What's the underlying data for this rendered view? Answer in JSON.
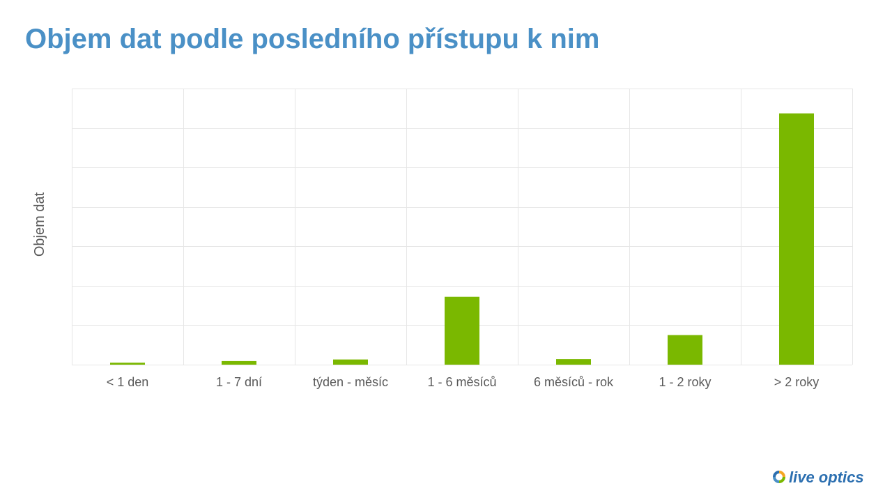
{
  "slide": {
    "title": "Objem dat podle posledního přístupu k nim",
    "logo_text": "live optics"
  },
  "colors": {
    "title": "#4a90c6",
    "bar": "#7ab800",
    "grid": "#e6e6e6",
    "text": "#595959"
  },
  "chart_data": {
    "type": "bar",
    "title": "",
    "xlabel": "",
    "ylabel": "Objem dat",
    "categories": [
      "< 1 den",
      "1 - 7 dní",
      "týden - měsíc",
      "1 - 6 měsíců",
      "6 měsíců - rok",
      "1 - 2 roky",
      "> 2 roky"
    ],
    "values": [
      0.5,
      0.9,
      1.3,
      17.2,
      1.4,
      7.5,
      63.7
    ],
    "ylim": [
      0,
      70
    ],
    "y_tick_labels_shown": false,
    "grid": true,
    "legend": "none"
  }
}
